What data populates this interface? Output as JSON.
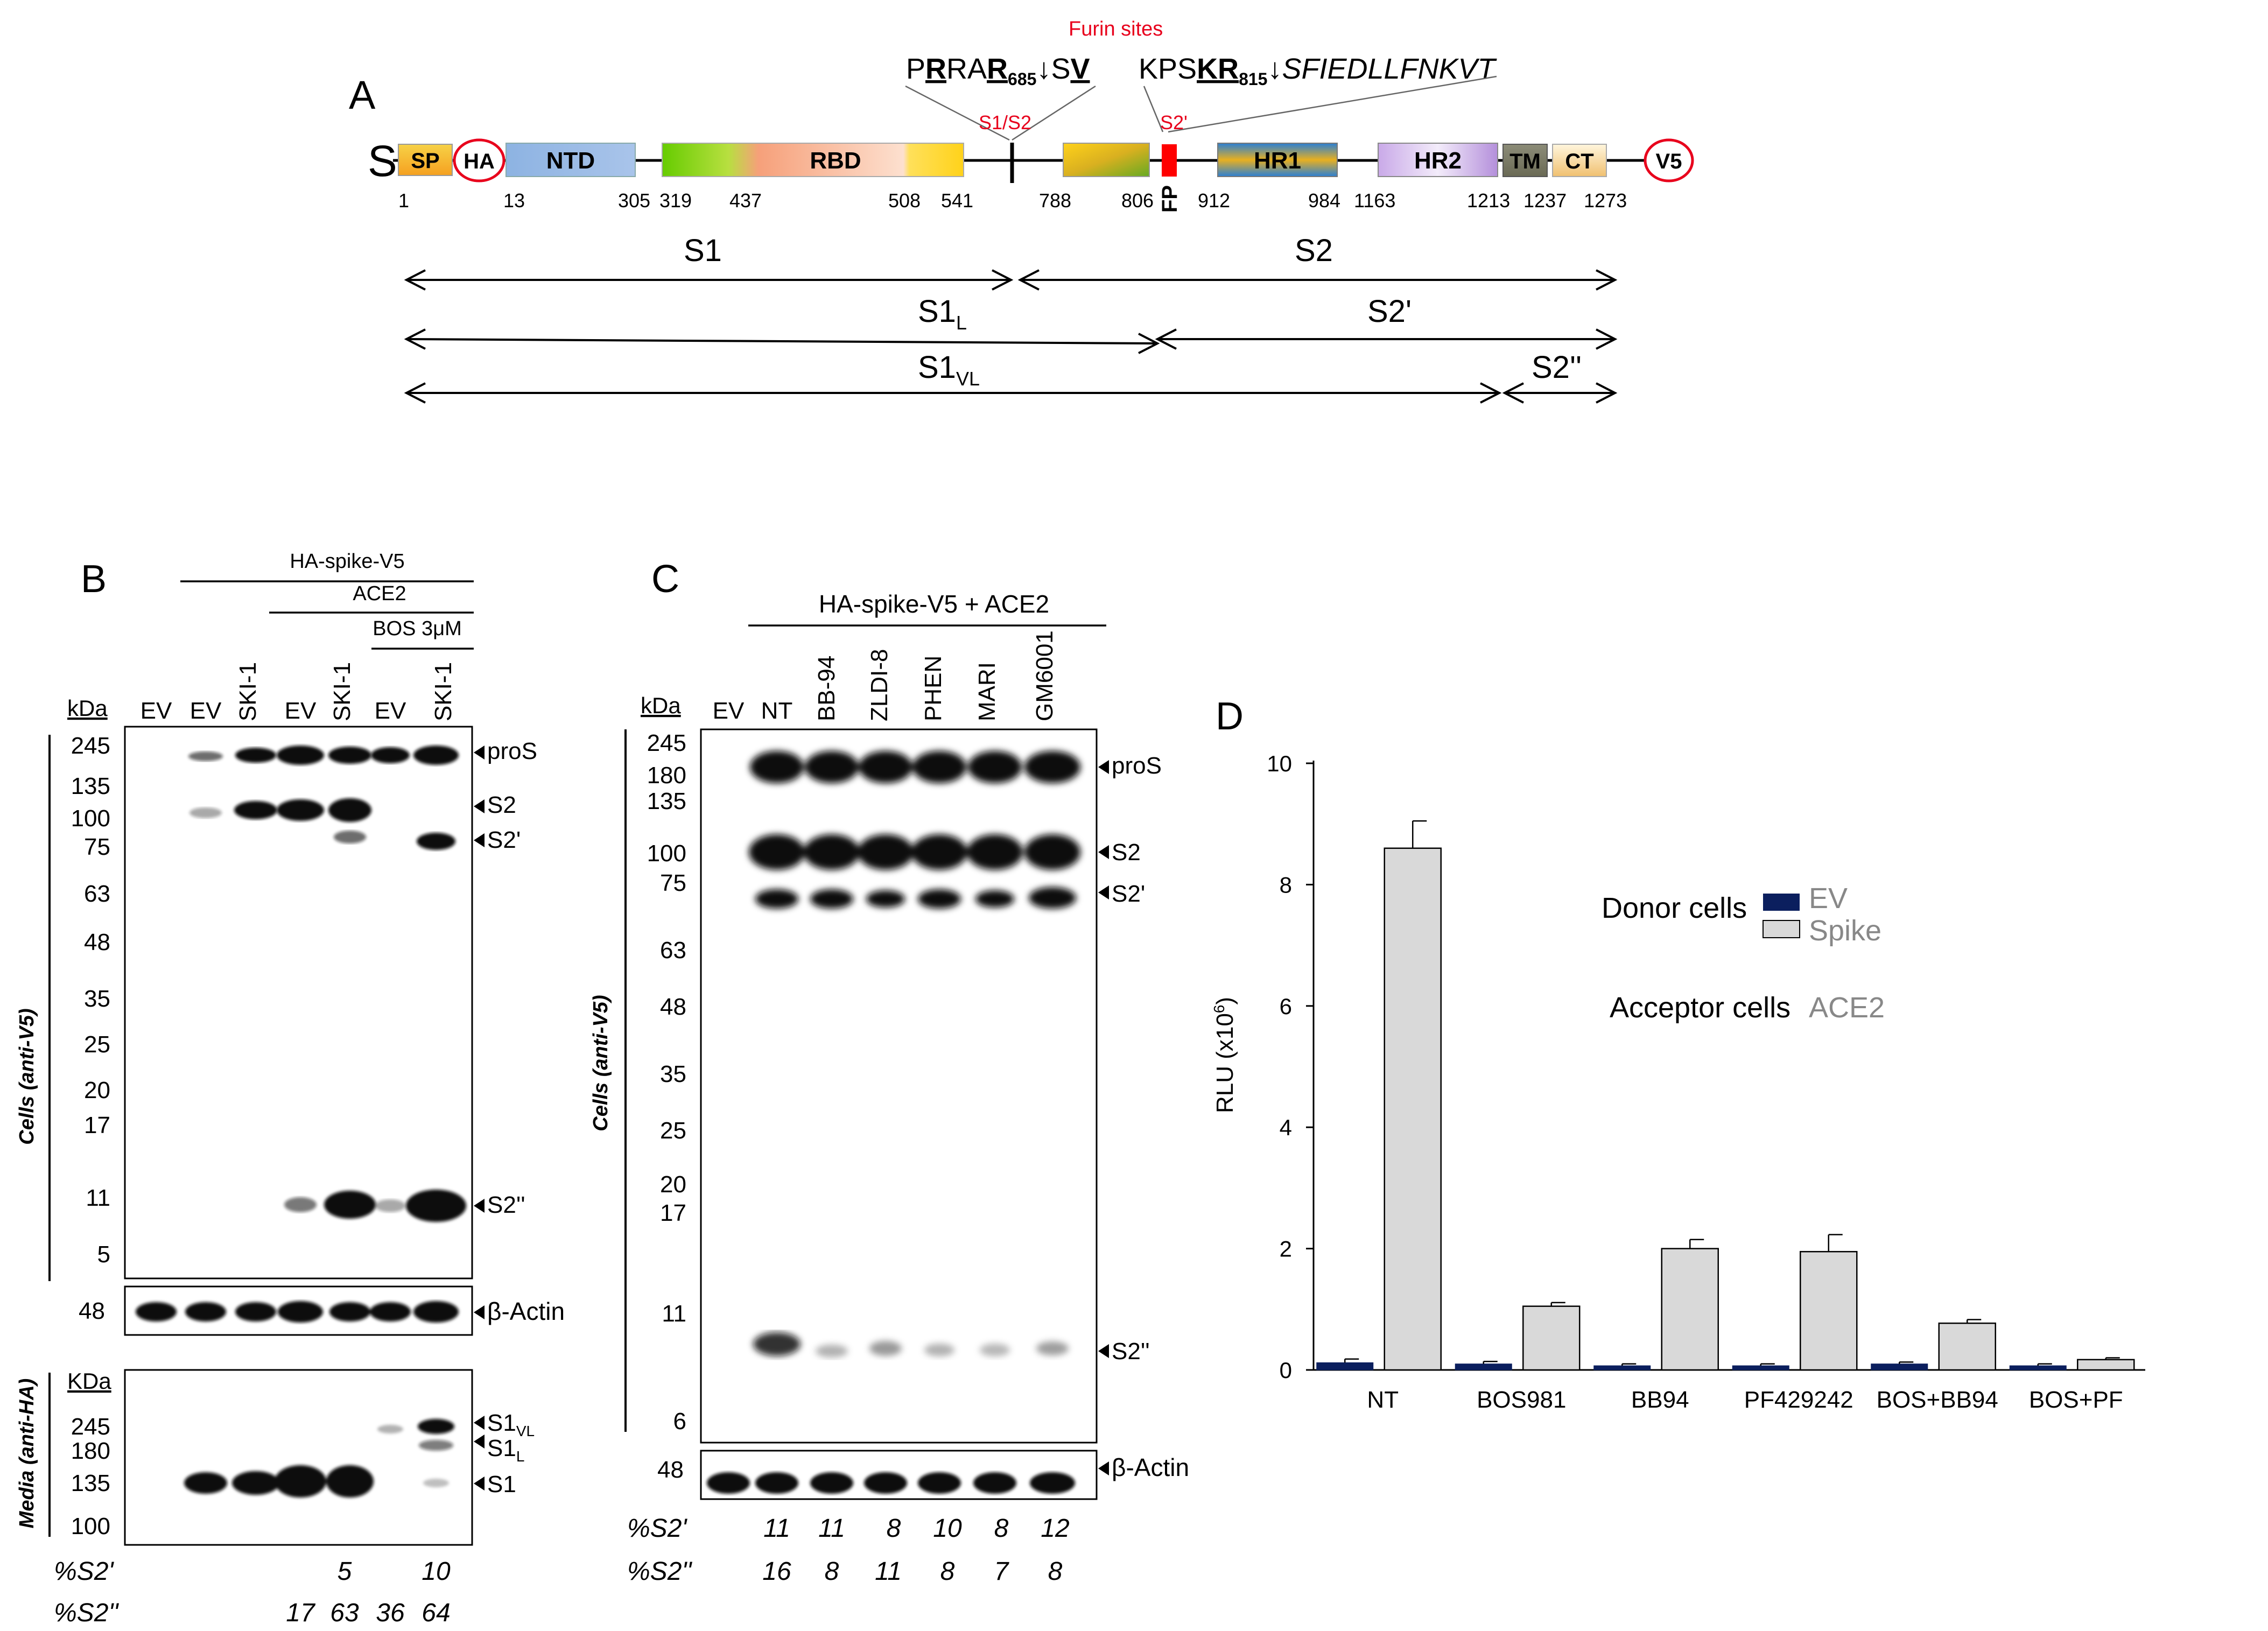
{
  "panelA": {
    "label": "A",
    "furin_title": "Furin sites",
    "s1s2_site": {
      "pre1": "P",
      "b1": "R",
      "mid1": "RA",
      "b2": "R",
      "sub": "685",
      "arrow": "↓",
      "post1": "S",
      "b3": "V"
    },
    "s2p_site": {
      "pre": "KPS",
      "b": "KR",
      "sub": "815",
      "arrow": "↓",
      "post": "SFIEDLLFNKVT"
    },
    "s1s2_label": "S1/S2",
    "s2p_label": "S2'",
    "construct_label": "S",
    "domains": {
      "sp": "SP",
      "ha": "HA",
      "ntd": "NTD",
      "rbd": "RBD",
      "fp": "FP",
      "hr1": "HR1",
      "hr2": "HR2",
      "tm": "TM",
      "ct": "CT",
      "v5": "V5"
    },
    "positions": [
      "1",
      "13",
      "305",
      "319",
      "437",
      "508",
      "541",
      "788",
      "806",
      "912",
      "984",
      "1163",
      "1213",
      "1237",
      "1273"
    ],
    "fragments": {
      "s1": "S1",
      "s2": "S2",
      "s1l": "S1",
      "s1l_sub": "L",
      "s2p": "S2'",
      "s1vl": "S1",
      "s1vl_sub": "VL",
      "s2pp": "S2''"
    }
  },
  "panelB": {
    "label": "B",
    "header1": "HA-spike-V5",
    "header2": "ACE2",
    "header3": "BOS 3μM",
    "kda": "kDa",
    "kda_media": "KDa",
    "lanes": [
      "EV",
      "EV",
      "SKI-1",
      "EV",
      "SKI-1",
      "EV",
      "SKI-1"
    ],
    "markers": [
      "245",
      "135",
      "100",
      "75",
      "63",
      "48",
      "35",
      "25",
      "20",
      "17",
      "11",
      "5"
    ],
    "actin_marker": "48",
    "media_markers": [
      "245",
      "180",
      "135",
      "100"
    ],
    "band_labels": [
      "proS",
      "S2",
      "S2'",
      "S2''"
    ],
    "actin_label": "β-Actin",
    "media_band_labels": {
      "s1vl": "S1",
      "s1vl_sub": "VL",
      "s1l": "S1",
      "s1l_sub": "L",
      "s1": "S1"
    },
    "side_cells": "Cells (anti-V5)",
    "side_media": "Media (anti-HA)",
    "pct_s2p_label": "%S2'",
    "pct_s2p": [
      "",
      "",
      "",
      "",
      "5",
      "",
      "10"
    ],
    "pct_s2pp_label": "%S2''",
    "pct_s2pp": [
      "",
      "",
      "",
      "17",
      "63",
      "36",
      "64"
    ]
  },
  "panelC": {
    "label": "C",
    "header": "HA-spike-V5 + ACE2",
    "kda": "kDa",
    "lanes": [
      "EV",
      "NT",
      "BB-94",
      "ZLDI-8",
      "PHEN",
      "MARI",
      "GM6001"
    ],
    "markers": [
      "245",
      "180",
      "135",
      "100",
      "75",
      "63",
      "48",
      "35",
      "25",
      "20",
      "17",
      "11",
      "6"
    ],
    "actin_marker": "48",
    "band_labels": [
      "proS",
      "S2",
      "S2'",
      "S2''"
    ],
    "actin_label": "β-Actin",
    "side_cells": "Cells (anti-V5)",
    "pct_s2p_label": "%S2'",
    "pct_s2p": [
      "",
      "11",
      "11",
      "8",
      "10",
      "8",
      "12"
    ],
    "pct_s2pp_label": "%S2''",
    "pct_s2pp": [
      "",
      "16",
      "8",
      "11",
      "8",
      "7",
      "8"
    ]
  },
  "panelD": {
    "label": "D",
    "colors": {
      "ev": "#0b1f5e",
      "spike": "#d9d9d9"
    },
    "chart_data": {
      "type": "bar",
      "categories": [
        "NT",
        "BOS981",
        "BB94",
        "PF429242",
        "BOS+BB94",
        "BOS+PF"
      ],
      "series": [
        {
          "name": "EV",
          "values": [
            0.12,
            0.1,
            0.07,
            0.07,
            0.1,
            0.07
          ],
          "errors": [
            0.06,
            0.04,
            0.03,
            0.03,
            0.03,
            0.03
          ]
        },
        {
          "name": "Spike",
          "values": [
            8.6,
            1.05,
            2.0,
            1.95,
            0.77,
            0.17
          ],
          "errors": [
            0.45,
            0.06,
            0.15,
            0.28,
            0.06,
            0.03
          ]
        }
      ],
      "title": "",
      "xlabel": "",
      "ylabel_main": "RLU (x10",
      "ylabel_sup": "6",
      "ylabel_end": ")",
      "ylim": [
        0,
        10
      ],
      "yticks": [
        "0",
        "2",
        "4",
        "6",
        "8",
        "10"
      ],
      "legend_title": "Donor cells",
      "legend_ev": "EV",
      "legend_spike": "Spike",
      "acceptor_label": "Acceptor cells",
      "acceptor_value": "ACE2"
    }
  }
}
